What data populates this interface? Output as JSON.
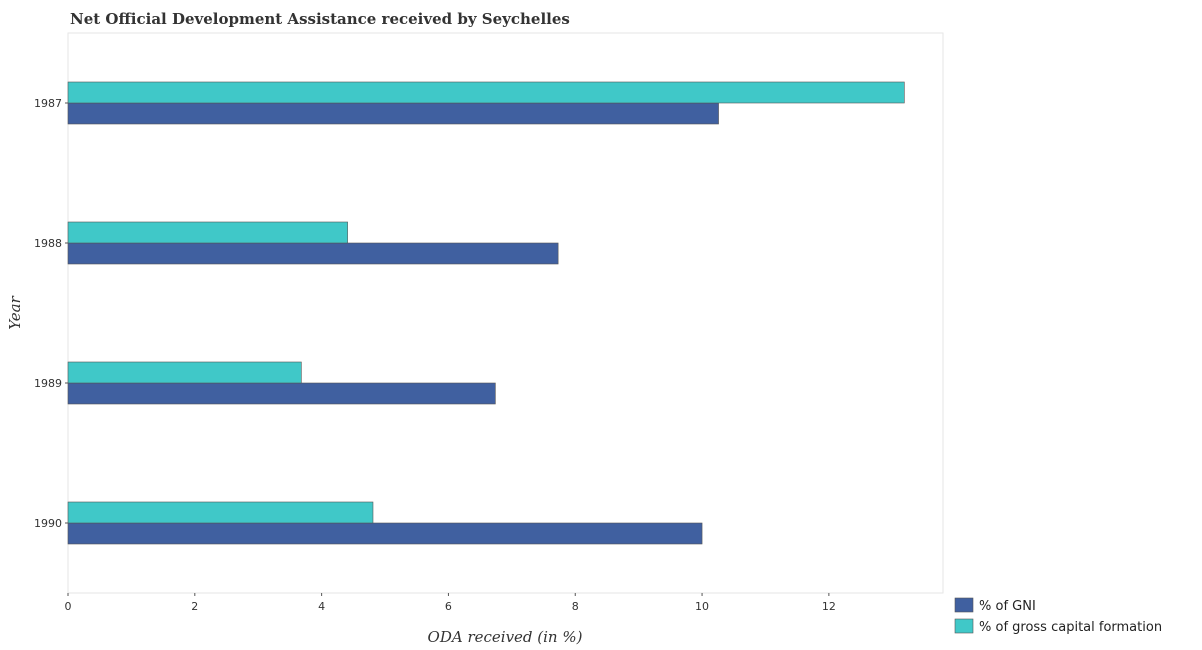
{
  "chart_data": {
    "type": "bar",
    "orientation": "horizontal",
    "title": "Net Official Development Assistance received by Seychelles",
    "xlabel": "ODA received (in %)",
    "ylabel": "Year",
    "categories": [
      "1987",
      "1988",
      "1989",
      "1990"
    ],
    "series": [
      {
        "name": "% of GNI",
        "color": "#4060a0",
        "values": [
          10.26,
          7.73,
          6.74,
          10.0
        ]
      },
      {
        "name": "% of gross capital formation",
        "color": "#40c8c8",
        "values": [
          13.19,
          4.41,
          3.68,
          4.81
        ]
      }
    ],
    "xlim": [
      0,
      13.8
    ],
    "xticks": [
      0,
      2,
      4,
      6,
      8,
      10,
      12
    ],
    "xtick_labels": [
      "0",
      "2",
      "4",
      "6",
      "8",
      "10",
      "12"
    ],
    "grid": false,
    "legend_position": "bottom-right"
  }
}
